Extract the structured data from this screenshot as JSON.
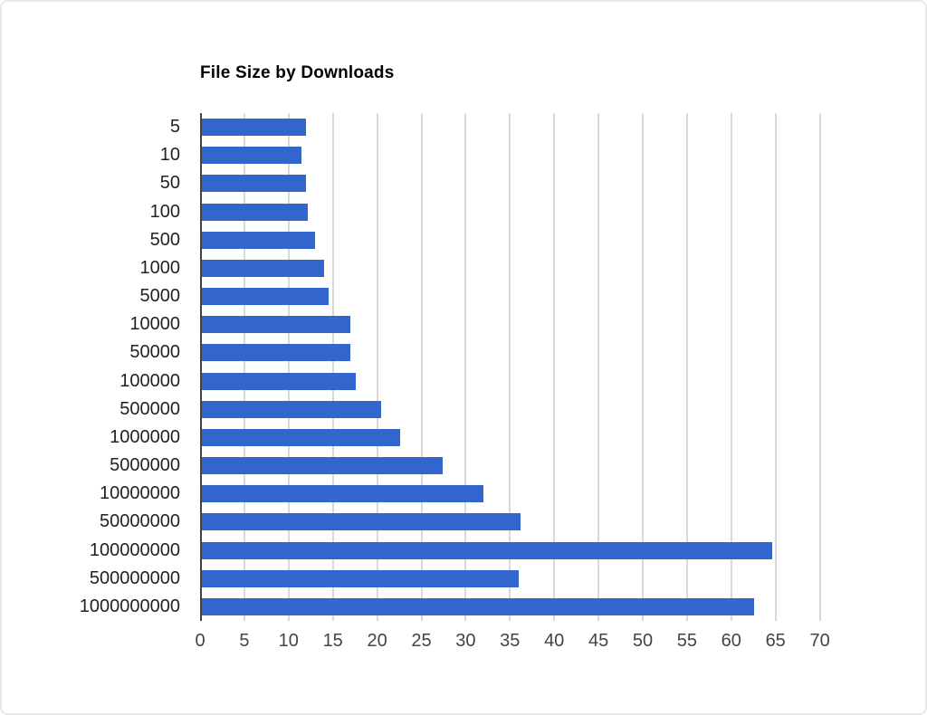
{
  "chart_data": {
    "type": "bar",
    "orientation": "horizontal",
    "title": "File Size by Downloads",
    "xlabel": "",
    "ylabel": "",
    "categories": [
      "5",
      "10",
      "50",
      "100",
      "500",
      "1000",
      "5000",
      "10000",
      "50000",
      "100000",
      "500000",
      "1000000",
      "5000000",
      "10000000",
      "50000000",
      "100000000",
      "500000000",
      "1000000000"
    ],
    "values": [
      12,
      11.5,
      12,
      12.2,
      13,
      14,
      14.5,
      17,
      17,
      17.6,
      20.5,
      22.6,
      27.4,
      32,
      36.2,
      64.6,
      36,
      62.6
    ],
    "xlim": [
      0,
      70
    ],
    "xticks": [
      0,
      5,
      10,
      15,
      20,
      25,
      30,
      35,
      40,
      45,
      50,
      55,
      60,
      65,
      70
    ],
    "grid": "vertical-only",
    "legend": "none",
    "bar_color": "#3366CC",
    "grid_color": "#d9d9d9",
    "axis_line_color": "#424242",
    "x_label_color": "#444444",
    "y_label_color": "#222222",
    "title_color": "#000000",
    "background_color": "#ffffff",
    "border_color": "#e9e9e9"
  }
}
